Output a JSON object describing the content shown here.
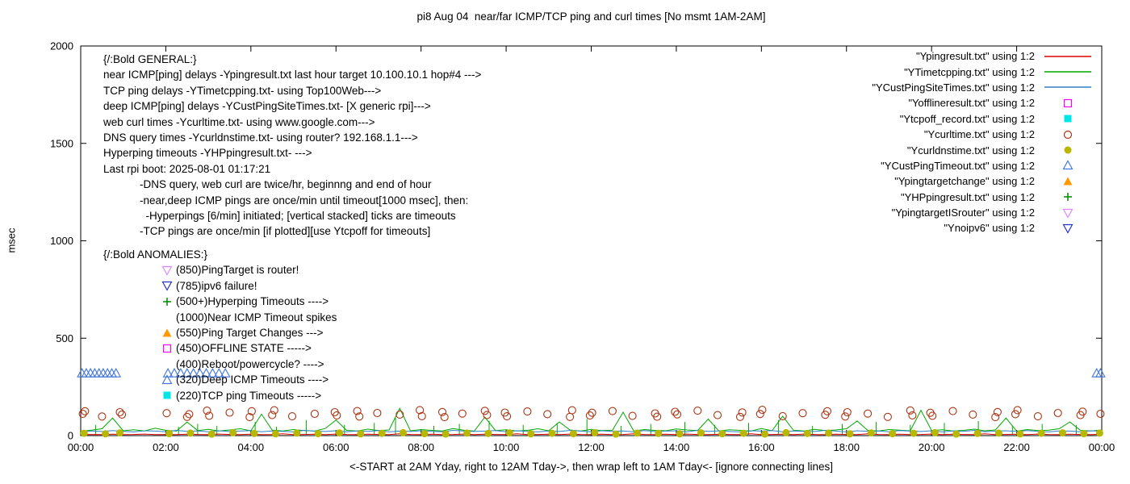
{
  "title": "pi8 Aug 04  near/far ICMP/TCP ping and curl times [No msmt 1AM-2AM]",
  "ylabel": "msec",
  "xlabel": "<-START at 2AM Yday, right to 12AM Tday->, then wrap left to 1AM Tday<- [ignore connecting lines]",
  "axes": {
    "y_ticks": [
      0,
      500,
      1000,
      1500,
      2000
    ],
    "y_tick_labels": [
      "0",
      "500",
      "1000",
      "1500",
      "2000"
    ],
    "x_tick_labels": [
      "00:00",
      "02:00",
      "04:00",
      "06:00",
      "08:00",
      "10:00",
      "12:00",
      "14:00",
      "16:00",
      "18:00",
      "20:00",
      "22:00",
      "00:00"
    ],
    "y_max": 2000,
    "x_hours": 24
  },
  "legend": [
    {
      "label": "\"Ypingresult.txt\" using 1:2",
      "marker": "line",
      "color": "#dd0000"
    },
    {
      "label": "\"YTimetcpping.txt\" using 1:2",
      "marker": "line",
      "color": "#00a800"
    },
    {
      "label": "\"YCustPingSiteTimes.txt\" using 1:2",
      "marker": "line",
      "color": "#3080c8"
    },
    {
      "label": "\"Yofflineresult.txt\" using 1:2",
      "marker": "square-open",
      "color": "#ff00ff"
    },
    {
      "label": "\"Ytcpoff_record.txt\" using 1:2",
      "marker": "square-filled",
      "color": "#00e5e5"
    },
    {
      "label": "\"Ycurltime.txt\" using 1:2",
      "marker": "circle-open",
      "color": "#aa3311"
    },
    {
      "label": "\"Ycurldnstime.txt\" using 1:2",
      "marker": "circle-filled",
      "color": "#b8b800"
    },
    {
      "label": "\"YCustPingTimeout.txt\" using 1:2",
      "marker": "triangle-up-open",
      "color": "#4477dd"
    },
    {
      "label": "\"Ypingtargetchange\" using 1:2",
      "marker": "triangle-up-filled",
      "color": "#ff9900"
    },
    {
      "label": "\"YHPpingresult.txt\" using 1:2",
      "marker": "plus",
      "color": "#008800"
    },
    {
      "label": "\"YpingtargetISrouter\" using 1:2",
      "marker": "triangle-down-open",
      "color": "#dd88ff"
    },
    {
      "label": "\"Ynoipv6\" using 1:2",
      "marker": "triangle-down-open",
      "color": "#2233cc"
    }
  ],
  "general": {
    "lines": [
      "{/:Bold GENERAL:}",
      "near ICMP[ping] delays -Ypingresult.txt last hour target 10.100.10.1 hop#4 --->",
      "TCP ping delays -YTimetcpping.txt- using Top100Web--->",
      "deep ICMP[ping] delays -YCustPingSiteTimes.txt- [X generic rpi]--->",
      "web curl times -Ycurltime.txt- using www.google.com--->",
      "DNS query times -Ycurldnstime.txt- using router? 192.168.1.1--->",
      "Hyperping timeouts -YHPpingresult.txt- --->",
      "Last rpi boot: 2025-08-01 01:17:21",
      "            -DNS query, web curl are twice/hr, beginnng and end of hour",
      "            -near,deep ICMP pings are once/min until timeout[1000 msec], then:",
      "              -Hyperpings [6/min] initiated; [vertical stacked] ticks are timeouts",
      "            -TCP pings are once/min [if plotted][use Ytcpoff for timeouts]"
    ]
  },
  "anomalies": {
    "heading": "{/:Bold ANOMALIES:}",
    "items": [
      {
        "marker": "triangle-down-open",
        "color": "#dd88ff",
        "text": "(850)PingTarget is router!"
      },
      {
        "marker": "triangle-down-open",
        "color": "#2233cc",
        "text": "(785)ipv6 failure!"
      },
      {
        "marker": "plus",
        "color": "#008800",
        "text": "(500+)Hyperping Timeouts ---->"
      },
      {
        "marker": "none",
        "color": "",
        "text": "(1000)Near ICMP Timeout spikes"
      },
      {
        "marker": "triangle-up-filled",
        "color": "#ff9900",
        "text": "(550)Ping Target Changes --->"
      },
      {
        "marker": "square-open",
        "color": "#ff00ff",
        "text": "(450)OFFLINE STATE ----->"
      },
      {
        "marker": "none",
        "color": "",
        "text": "(400)Reboot/powercycle? ---->"
      },
      {
        "marker": "triangle-up-open",
        "color": "#4477dd",
        "text": "(320)Deep ICMP Timeouts ---->"
      },
      {
        "marker": "square-filled",
        "color": "#00e5e5",
        "text": "(220)TCP ping Timeouts ----->"
      }
    ]
  },
  "chart_data": {
    "type": "line",
    "x_unit": "hours (00:00 to 00:00 next day)",
    "x_range": [
      0,
      24
    ],
    "y_range": [
      0,
      2000
    ],
    "ylabel": "msec",
    "grid": false,
    "legend_position": "top-right-outside-style",
    "sample_step_hours": 0.25,
    "series": [
      {
        "name": "Ypingresult.txt",
        "style": "line",
        "color": "#dd0000",
        "values": [
          5,
          6,
          5,
          7,
          5,
          6,
          8,
          5,
          6,
          5,
          7,
          6,
          5,
          8,
          6,
          5,
          7,
          5,
          6,
          9,
          5,
          6,
          7,
          5,
          8,
          6,
          5,
          7,
          6,
          5,
          9,
          6,
          5,
          7,
          5,
          6,
          8,
          5,
          7,
          6,
          5,
          9,
          5,
          6,
          7,
          5,
          8,
          6,
          5,
          7,
          5,
          6,
          9,
          6,
          5,
          7,
          5,
          8,
          6,
          5,
          7,
          6,
          5,
          9,
          5,
          6,
          7,
          5,
          8,
          6,
          5,
          7,
          6,
          5,
          9,
          6,
          5,
          7,
          5,
          6,
          8,
          5,
          7,
          6,
          5,
          9,
          5,
          6,
          7,
          5,
          8,
          6,
          5,
          7,
          6,
          5,
          7
        ]
      },
      {
        "name": "YTimetcpping.txt",
        "style": "line",
        "color": "#00a800",
        "values": [
          22,
          28,
          35,
          90,
          25,
          30,
          24,
          38,
          27,
          23,
          70,
          26,
          32,
          24,
          29,
          35,
          25,
          110,
          28,
          24,
          31,
          26,
          23,
          37,
          80,
          27,
          24,
          33,
          26,
          29,
          140,
          25,
          31,
          27,
          24,
          36,
          28,
          23,
          95,
          26,
          30,
          24,
          27,
          35,
          25,
          70,
          29,
          23,
          32,
          26,
          28,
          120,
          24,
          31,
          27,
          25,
          34,
          29,
          26,
          85,
          24,
          30,
          27,
          23,
          36,
          25,
          100,
          28,
          24,
          32,
          26,
          29,
          35,
          75,
          27,
          24,
          31,
          28,
          25,
          130,
          26,
          30,
          24,
          27,
          33,
          25,
          29,
          90,
          23,
          31,
          26,
          28,
          35,
          70,
          27,
          24,
          29
        ]
      },
      {
        "name": "YCustPingSiteTimes.txt",
        "style": "line",
        "color": "#3080c8",
        "values": [
          20,
          24,
          21,
          26,
          22,
          19,
          25,
          23,
          20,
          27,
          22,
          24,
          20,
          25,
          21,
          23,
          26,
          20,
          24,
          22,
          19,
          27,
          23,
          21,
          25,
          20,
          24,
          22,
          26,
          19,
          23,
          21,
          25,
          22,
          20,
          27,
          24,
          21,
          23,
          26,
          20,
          25,
          22,
          19,
          24,
          21,
          27,
          23,
          20,
          25,
          22,
          24,
          19,
          26,
          21,
          23,
          25,
          20,
          27,
          22,
          24,
          21,
          19,
          25,
          23,
          26,
          20,
          24,
          22,
          21,
          27,
          23,
          19,
          25,
          22,
          24,
          20,
          26,
          23,
          21,
          25,
          19,
          24,
          22,
          27,
          20,
          23,
          25,
          21,
          26,
          22,
          19,
          24,
          23,
          20,
          25,
          22
        ]
      }
    ],
    "points": [
      {
        "name": "Ycurltime.txt",
        "style": "circle-open",
        "color": "#aa3311",
        "x": [
          0.05,
          0.1,
          0.5,
          0.92,
          0.97,
          2.02,
          2.5,
          2.55,
          2.97,
          3.02,
          3.5,
          3.97,
          4.02,
          4.5,
          4.55,
          4.97,
          5.5,
          5.97,
          6.02,
          6.5,
          6.55,
          6.97,
          7.5,
          7.97,
          8.02,
          8.5,
          8.55,
          8.97,
          9.5,
          9.55,
          9.97,
          10.02,
          10.5,
          10.97,
          11.5,
          11.55,
          11.97,
          12.02,
          12.5,
          12.97,
          13.5,
          13.55,
          13.97,
          14.02,
          14.5,
          14.97,
          15.5,
          15.55,
          15.97,
          16.02,
          16.5,
          16.97,
          17.5,
          17.55,
          17.97,
          18.02,
          18.5,
          18.97,
          19.5,
          19.55,
          19.97,
          20.02,
          20.5,
          20.97,
          21.5,
          21.55,
          21.97,
          22.02,
          22.5,
          22.97,
          23.5,
          23.55,
          23.97
        ],
        "y": [
          112,
          125,
          98,
          120,
          108,
          115,
          96,
          110,
          128,
          102,
          118,
          95,
          125,
          105,
          130,
          99,
          112,
          120,
          104,
          126,
          98,
          116,
          108,
          131,
          100,
          121,
          95,
          113,
          127,
          106,
          118,
          99,
          124,
          110,
          96,
          130,
          103,
          117,
          126,
          101,
          114,
          97,
          122,
          109,
          128,
          105,
          96,
          119,
          111,
          132,
          100,
          115,
          107,
          125,
          98,
          120,
          113,
          96,
          129,
          104,
          117,
          102,
          126,
          108,
          95,
          121,
          110,
          131,
          99,
          116,
          105,
          123,
          112
        ]
      },
      {
        "name": "Ycurldnstime.txt",
        "style": "circle-filled",
        "color": "#b8b800",
        "x": [
          0.08,
          0.58,
          0.92,
          2.08,
          2.58,
          3.08,
          3.58,
          4.08,
          4.58,
          5.08,
          5.58,
          6.08,
          6.58,
          7.08,
          7.58,
          8.08,
          8.58,
          9.08,
          9.58,
          10.08,
          10.58,
          11.08,
          11.58,
          12.08,
          12.58,
          13.08,
          13.58,
          14.08,
          14.58,
          15.08,
          15.58,
          16.08,
          16.58,
          17.08,
          17.58,
          18.08,
          18.58,
          19.08,
          19.58,
          20.08,
          20.58,
          21.08,
          21.58,
          22.08,
          22.58,
          23.08,
          23.58,
          23.95
        ],
        "y": [
          12,
          9,
          14,
          10,
          13,
          8,
          15,
          11,
          9,
          13,
          10,
          14,
          9,
          12,
          15,
          10,
          8,
          13,
          11,
          14,
          9,
          12,
          10,
          15,
          8,
          13,
          11,
          9,
          14,
          10,
          12,
          8,
          15,
          11,
          13,
          9,
          14,
          10,
          12,
          15,
          8,
          11,
          13,
          9,
          12,
          14,
          10,
          13
        ]
      },
      {
        "name": "YCustPingTimeout.txt",
        "style": "triangle-up-open",
        "color": "#4477dd",
        "x": [
          0.03,
          0.13,
          0.23,
          0.33,
          0.43,
          0.53,
          0.63,
          0.73,
          0.83,
          2.05,
          2.2,
          2.35,
          2.5,
          2.65,
          2.8,
          2.95,
          3.1,
          3.25,
          3.4,
          23.88,
          23.97
        ],
        "y": 320
      }
    ],
    "spikes": {
      "name": "YHPpingresult.txt",
      "color": "#00a800",
      "x": [
        0.35,
        2.3,
        2.75,
        3.2,
        4.1,
        4.6,
        5.3,
        6.2,
        6.9,
        7.4,
        8.3,
        8.9,
        9.6,
        10.4,
        11.2,
        11.9,
        12.7,
        13.4,
        14.2,
        14.9,
        15.7,
        16.4,
        17.2,
        17.9,
        18.7,
        19.5,
        20.3,
        21.1,
        21.9,
        22.6,
        23.4
      ],
      "peak": [
        55,
        45,
        60,
        50,
        70,
        45,
        80,
        55,
        65,
        90,
        50,
        60,
        75,
        55,
        65,
        85,
        50,
        60,
        70,
        55,
        65,
        80,
        50,
        60,
        70,
        55,
        65,
        75,
        50,
        60,
        55
      ]
    },
    "annotations_note": "GENERAL and ANOMALIES text blocks are drawn inside the plot area; anomaly labels sit at the msec level given in parentheses"
  }
}
